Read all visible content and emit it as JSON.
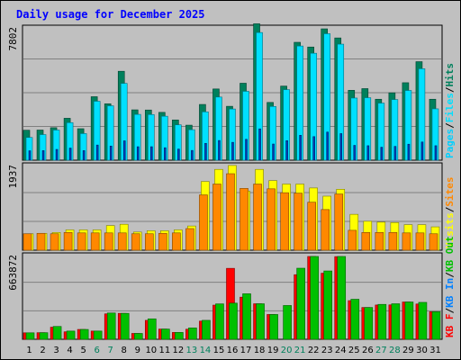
{
  "title": "Daily usage for December 2025",
  "colors": {
    "pages": "#00d0ff",
    "files": "#00e0ff",
    "hits": "#00805c",
    "visits": "#ffff00",
    "sites": "#ff8800",
    "kb_in": "#0080ff",
    "kb_out": "#00c000",
    "kb_f": "#ff0000",
    "weekend_day": "#00805c",
    "day": "#000000"
  },
  "chart_data": [
    {
      "type": "bar",
      "panel": "hits",
      "ymax_label": "7802",
      "legend": [
        "Pages",
        "/",
        "Files",
        "/",
        "Hits"
      ],
      "x": [
        "1",
        "2",
        "3",
        "4",
        "5",
        "6",
        "7",
        "8",
        "9",
        "10",
        "11",
        "12",
        "13",
        "14",
        "15",
        "16",
        "17",
        "18",
        "19",
        "20",
        "21",
        "22",
        "23",
        "24",
        "25",
        "26",
        "27",
        "28",
        "29",
        "30",
        "31"
      ],
      "weekend_days": [
        "6",
        "7",
        "13",
        "14",
        "20",
        "21",
        "27",
        "28"
      ],
      "ymax": 7802,
      "series": [
        {
          "name": "Hits",
          "values": [
            1780,
            1790,
            1930,
            2490,
            1870,
            3770,
            3350,
            5280,
            2990,
            2980,
            2840,
            2390,
            2080,
            3310,
            4230,
            3200,
            4570,
            8100,
            3430,
            4400,
            7000,
            6720,
            7800,
            7260,
            4150,
            4250,
            3620,
            4000,
            4600,
            5850,
            3620
          ]
        },
        {
          "name": "Files",
          "values": [
            1350,
            1520,
            1790,
            2230,
            1580,
            3500,
            3230,
            4560,
            2720,
            2710,
            2610,
            2100,
            1810,
            2870,
            3750,
            3040,
            4090,
            7580,
            3190,
            4190,
            6780,
            6350,
            7510,
            6890,
            3690,
            3710,
            3390,
            3600,
            4140,
            5430,
            3050
          ]
        },
        {
          "name": "Pages",
          "values": [
            560,
            570,
            640,
            720,
            570,
            900,
            840,
            1150,
            800,
            800,
            740,
            660,
            580,
            1000,
            1170,
            1060,
            1240,
            1860,
            960,
            1160,
            1480,
            1400,
            1670,
            1580,
            880,
            860,
            770,
            820,
            950,
            1080,
            860
          ]
        }
      ]
    },
    {
      "type": "bar",
      "panel": "visits",
      "ymax_label": "1937",
      "legend": [
        "Visits",
        "/",
        "Sites"
      ],
      "x": [
        "1",
        "2",
        "3",
        "4",
        "5",
        "6",
        "7",
        "8",
        "9",
        "10",
        "11",
        "12",
        "13",
        "14",
        "15",
        "16",
        "17",
        "18",
        "19",
        "20",
        "21",
        "22",
        "23",
        "24",
        "25",
        "26",
        "27",
        "28",
        "29",
        "30",
        "31"
      ],
      "ymax": 1937,
      "series": [
        {
          "name": "Visits",
          "values": [
            380,
            390,
            410,
            470,
            470,
            470,
            570,
            600,
            420,
            450,
            450,
            470,
            560,
            1590,
            1870,
            1960,
            1370,
            1870,
            1610,
            1530,
            1530,
            1440,
            1250,
            1410,
            830,
            670,
            650,
            640,
            590,
            590,
            540
          ]
        },
        {
          "name": "Sites",
          "values": [
            380,
            390,
            380,
            410,
            400,
            400,
            400,
            400,
            380,
            380,
            390,
            400,
            500,
            1280,
            1530,
            1770,
            1430,
            1530,
            1420,
            1330,
            1320,
            1110,
            940,
            1300,
            460,
            410,
            410,
            410,
            400,
            400,
            380
          ]
        }
      ]
    },
    {
      "type": "bar",
      "panel": "kbytes",
      "ymax_label": "663872",
      "legend": [
        "KB F",
        "/",
        "KB In",
        "/",
        "KB Out"
      ],
      "x": [
        "1",
        "2",
        "3",
        "4",
        "5",
        "6",
        "7",
        "8",
        "9",
        "10",
        "11",
        "12",
        "13",
        "14",
        "15",
        "16",
        "17",
        "18",
        "19",
        "20",
        "21",
        "22",
        "23",
        "24",
        "25",
        "26",
        "27",
        "28",
        "29",
        "30",
        "31"
      ],
      "ymax": 663872,
      "series": [
        {
          "name": "KB F",
          "values": [
            52000,
            53000,
            97000,
            60000,
            79000,
            66000,
            204000,
            208000,
            47000,
            152000,
            82000,
            55000,
            81000,
            146000,
            274000,
            569000,
            338000,
            285000,
            199000,
            0,
            518000,
            664000,
            530000,
            663000,
            310000,
            255000,
            275000,
            276000,
            299000,
            283000,
            221000
          ]
        },
        {
          "name": "KB Out",
          "values": [
            52000,
            53000,
            103000,
            66000,
            79000,
            66000,
            211000,
            208000,
            47000,
            164000,
            82000,
            55000,
            91000,
            152000,
            284000,
            290000,
            365000,
            285000,
            199000,
            271000,
            570000,
            664000,
            548000,
            664000,
            321000,
            255000,
            280000,
            285000,
            299000,
            296000,
            221000
          ]
        }
      ]
    }
  ]
}
